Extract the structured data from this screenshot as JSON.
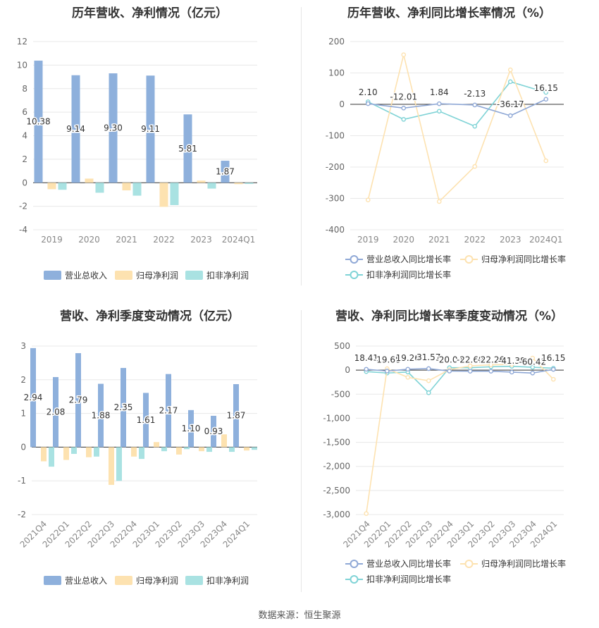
{
  "source": "数据来源：恒生聚源",
  "chart_data": [
    {
      "type": "bar",
      "title": "历年营收、净利情况（亿元）",
      "categories": [
        "2019",
        "2020",
        "2021",
        "2022",
        "2023",
        "2024Q1"
      ],
      "ylim": [
        -4,
        12
      ],
      "yticks": [
        -4,
        -2,
        0,
        2,
        4,
        6,
        8,
        10,
        12
      ],
      "legend": "bottom",
      "series": [
        {
          "name": "营业总收入",
          "color": "#8eb0dc",
          "values": [
            10.38,
            9.14,
            9.3,
            9.11,
            5.81,
            1.87
          ]
        },
        {
          "name": "归母净利润",
          "color": "#fde2b0",
          "values": [
            -0.55,
            0.35,
            -0.65,
            -2.05,
            0.18,
            -0.12
          ]
        },
        {
          "name": "扣非净利润",
          "color": "#a9e2e2",
          "values": [
            -0.6,
            -0.85,
            -1.1,
            -1.9,
            -0.5,
            -0.1
          ]
        }
      ],
      "data_labels": [
        "10.38",
        "9.14",
        "9.30",
        "9.11",
        "5.81",
        "1.87"
      ]
    },
    {
      "type": "line",
      "title": "历年营收、净利同比增长率情况（%）",
      "categories": [
        "2019",
        "2020",
        "2021",
        "2022",
        "2023",
        "2024Q1"
      ],
      "ylim": [
        -400,
        200
      ],
      "yticks": [
        -400,
        -300,
        -200,
        -100,
        0,
        100,
        200
      ],
      "legend": "bottom",
      "series": [
        {
          "name": "营业总收入同比增长率",
          "color": "#8fa8d6",
          "values": [
            2.1,
            -12.01,
            1.84,
            -2.13,
            -36.17,
            16.15
          ]
        },
        {
          "name": "归母净利润同比增长率",
          "color": "#fde2b0",
          "values": [
            -305,
            158,
            -310,
            -198,
            110,
            -180
          ]
        },
        {
          "name": "扣非净利润同比增长率",
          "color": "#7fd3d6",
          "values": [
            8,
            -48,
            -22,
            -70,
            72,
            38
          ]
        }
      ],
      "data_labels": [
        "2.10",
        "-12.01",
        "1.84",
        "-2.13",
        "-36.17",
        "16.15"
      ]
    },
    {
      "type": "bar",
      "title": "营收、净利季度变动情况（亿元）",
      "categories": [
        "2021Q4",
        "2022Q1",
        "2022Q2",
        "2022Q3",
        "2022Q4",
        "2023Q1",
        "2023Q2",
        "2023Q3",
        "2023Q4",
        "2024Q1"
      ],
      "ylim": [
        -2,
        3
      ],
      "yticks": [
        -2,
        -1,
        0,
        1,
        2,
        3
      ],
      "legend": "bottom",
      "series": [
        {
          "name": "营业总收入",
          "color": "#8eb0dc",
          "values": [
            2.94,
            2.08,
            2.79,
            1.88,
            2.35,
            1.61,
            2.17,
            1.1,
            0.93,
            1.87
          ]
        },
        {
          "name": "归母净利润",
          "color": "#fde2b0",
          "values": [
            -0.42,
            -0.38,
            -0.3,
            -1.12,
            -0.28,
            0.15,
            -0.22,
            -0.12,
            0.38,
            -0.1
          ]
        },
        {
          "name": "扣非净利润",
          "color": "#a9e2e2",
          "values": [
            -0.58,
            -0.2,
            -0.28,
            -1.0,
            -0.35,
            -0.12,
            -0.06,
            -0.14,
            -0.14,
            -0.08
          ]
        }
      ],
      "data_labels": [
        "2.94",
        "2.08",
        "2.79",
        "1.88",
        "2.35",
        "1.61",
        "2.17",
        "1.10",
        "0.93",
        "1.87"
      ]
    },
    {
      "type": "line",
      "title": "营收、净利同比增长率季度变动情况（%）",
      "categories": [
        "2021Q4",
        "2022Q1",
        "2022Q2",
        "2022Q3",
        "2022Q4",
        "2023Q1",
        "2023Q2",
        "2023Q3",
        "2023Q4",
        "2024Q1"
      ],
      "ylim": [
        -3000,
        500
      ],
      "yticks": [
        -3000,
        -2500,
        -2000,
        -1500,
        -1000,
        -500,
        0,
        500
      ],
      "ytick_labels": [
        "-3,000",
        "-2,500",
        "-2,000",
        "-1,500",
        "-1,000",
        "-500",
        "0",
        "500"
      ],
      "legend": "bottom",
      "series": [
        {
          "name": "营业总收入同比增长率",
          "color": "#8fa8d6",
          "values": [
            18.41,
            -19.68,
            19.26,
            31.57,
            -20.04,
            -22.69,
            -22.26,
            -41.38,
            -60.42,
            16.15
          ]
        },
        {
          "name": "归母净利润同比增长率",
          "color": "#fde2b0",
          "values": [
            -2980,
            30,
            -150,
            -220,
            10,
            90,
            110,
            120,
            250,
            -190
          ]
        },
        {
          "name": "扣非净利润同比增长率",
          "color": "#7fd3d6",
          "values": [
            -30,
            -60,
            -40,
            -470,
            50,
            50,
            70,
            80,
            60,
            40
          ]
        }
      ],
      "data_labels": [
        "18.41",
        "-19.68",
        "19.26",
        "31.57",
        "-20.04",
        "-22.69",
        "-22.26",
        "-41.38",
        "-60.42",
        "16.15"
      ]
    }
  ]
}
